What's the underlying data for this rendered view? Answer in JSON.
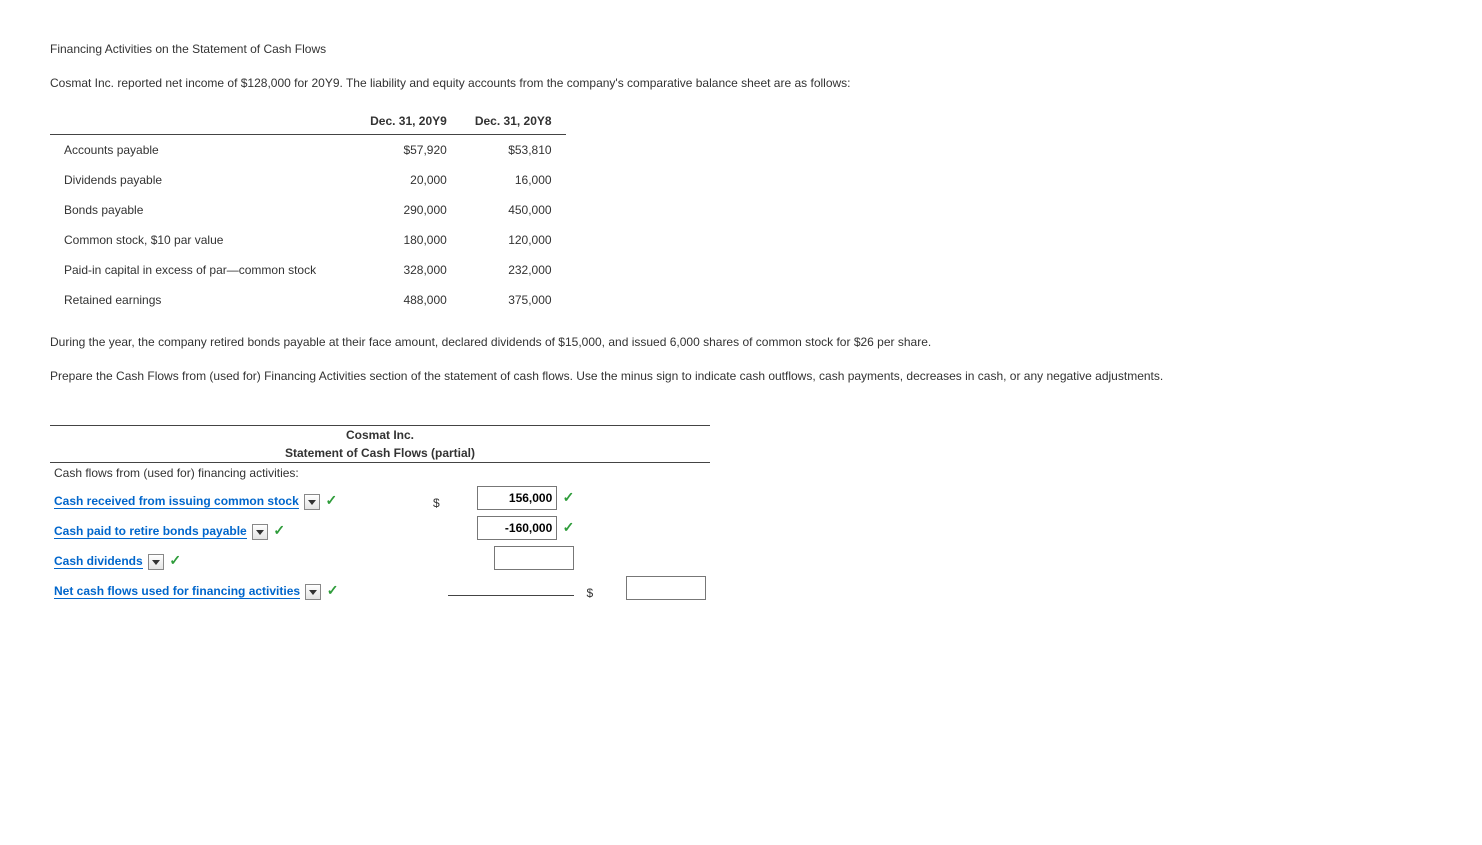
{
  "intro": {
    "title": "Financing Activities on the Statement of Cash Flows",
    "p1": "Cosmat Inc. reported net income of $128,000 for 20Y9. The liability and equity accounts from the company's comparative balance sheet are as follows:",
    "p2": "During the year, the company retired bonds payable at their face amount, declared dividends of $15,000, and issued 6,000 shares of common stock for $26 per share.",
    "p3": "Prepare the Cash Flows from (used for) Financing Activities section of the statement of cash flows. Use the minus sign to indicate cash outflows, cash payments, decreases in cash, or any negative adjustments."
  },
  "balance": {
    "col1": "Dec. 31, 20Y9",
    "col2": "Dec. 31, 20Y8",
    "rows": [
      {
        "label": "Accounts payable",
        "y9": "$57,920",
        "y8": "$53,810"
      },
      {
        "label": "Dividends payable",
        "y9": "20,000",
        "y8": "16,000"
      },
      {
        "label": "Bonds payable",
        "y9": "290,000",
        "y8": "450,000"
      },
      {
        "label": "Common stock, $10 par value",
        "y9": "180,000",
        "y8": "120,000"
      },
      {
        "label": "Paid-in capital in excess of par—common stock",
        "y9": "328,000",
        "y8": "232,000"
      },
      {
        "label": "Retained earnings",
        "y9": "488,000",
        "y8": "375,000"
      }
    ]
  },
  "cf": {
    "company": "Cosmat Inc.",
    "statement": "Statement of Cash Flows (partial)",
    "section": "Cash flows from (used for) financing activities:",
    "lines": [
      {
        "label": "Cash received from issuing common stock",
        "value": "156,000",
        "dollar": "$",
        "check_label": true,
        "check_value": true
      },
      {
        "label": "Cash paid to retire bonds payable",
        "value": "-160,000",
        "dollar": "",
        "check_label": true,
        "check_value": true
      },
      {
        "label": "Cash dividends",
        "value": "",
        "dollar": "",
        "check_label": true,
        "check_value": false
      }
    ],
    "total": {
      "label": "Net cash flows used for financing activities",
      "value": "",
      "dollar": "$",
      "check_label": true
    }
  },
  "colors": {
    "link": "#0066cc",
    "check": "#2e9c3a",
    "text": "#333333",
    "border": "#444444"
  }
}
